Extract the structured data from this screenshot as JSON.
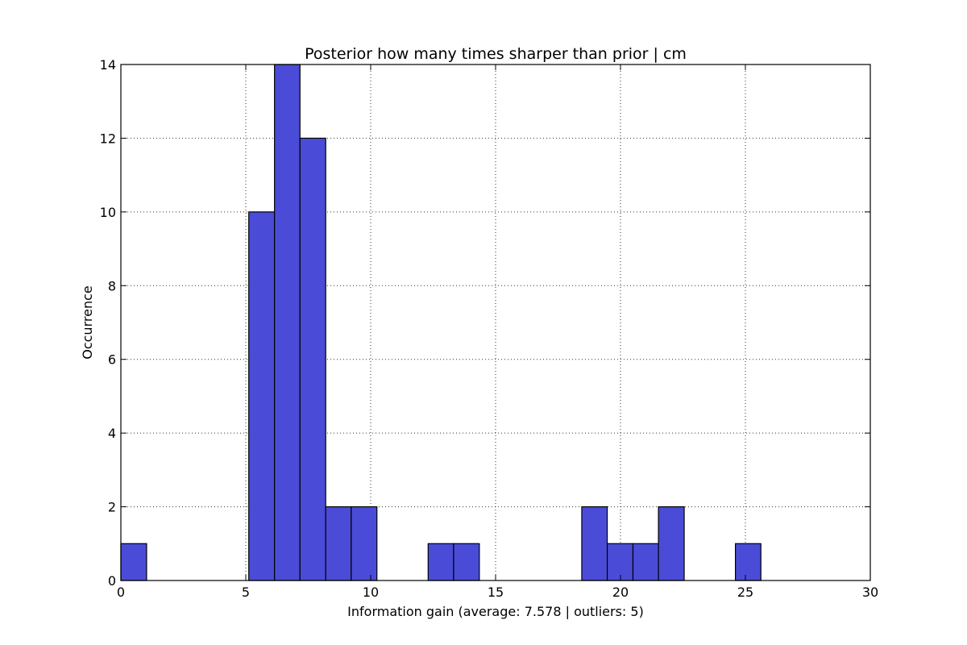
{
  "chart_data": {
    "type": "bar",
    "title": "Posterior how many times sharper than prior | cm",
    "xlabel": "Information gain (average: 7.578 | outliers: 5)",
    "ylabel": "Occurrence",
    "xlim": [
      0,
      30
    ],
    "ylim": [
      0,
      14
    ],
    "xticks": [
      0,
      5,
      10,
      15,
      20,
      25,
      30
    ],
    "yticks": [
      0,
      2,
      4,
      6,
      8,
      10,
      12,
      14
    ],
    "grid": true,
    "bar_color": "#4a4cd7",
    "bins": [
      {
        "x0": 0.0,
        "x1": 1.03,
        "count": 1
      },
      {
        "x0": 5.12,
        "x1": 6.15,
        "count": 10
      },
      {
        "x0": 6.15,
        "x1": 7.17,
        "count": 14
      },
      {
        "x0": 7.17,
        "x1": 8.2,
        "count": 12
      },
      {
        "x0": 8.2,
        "x1": 9.22,
        "count": 2
      },
      {
        "x0": 9.22,
        "x1": 10.25,
        "count": 2
      },
      {
        "x0": 12.3,
        "x1": 13.32,
        "count": 1
      },
      {
        "x0": 13.32,
        "x1": 14.35,
        "count": 1
      },
      {
        "x0": 18.45,
        "x1": 19.47,
        "count": 2
      },
      {
        "x0": 19.47,
        "x1": 20.5,
        "count": 1
      },
      {
        "x0": 20.5,
        "x1": 21.52,
        "count": 1
      },
      {
        "x0": 21.52,
        "x1": 22.55,
        "count": 2
      },
      {
        "x0": 24.6,
        "x1": 25.62,
        "count": 1
      }
    ]
  }
}
